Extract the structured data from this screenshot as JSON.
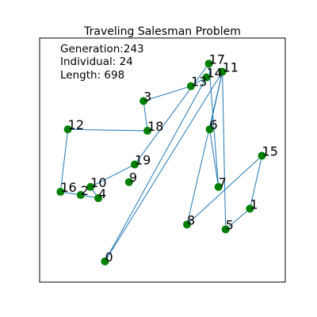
{
  "chart_data": {
    "type": "scatter",
    "title": "Traveling Salesman Problem",
    "xlim": [
      0,
      1
    ],
    "ylim": [
      0,
      1
    ],
    "grid": false,
    "annotations": {
      "generation": "Generation:243",
      "individual": "Individual: 24",
      "length": "Length:  698"
    },
    "colors": {
      "point": "#008000",
      "edge": "#1f77b4"
    },
    "cities": [
      {
        "id": "0",
        "x": 0.266,
        "y": 0.085
      },
      {
        "id": "1",
        "x": 0.856,
        "y": 0.301
      },
      {
        "id": "2",
        "x": 0.167,
        "y": 0.357
      },
      {
        "id": "3",
        "x": 0.423,
        "y": 0.742
      },
      {
        "id": "4",
        "x": 0.239,
        "y": 0.344
      },
      {
        "id": "5",
        "x": 0.757,
        "y": 0.216
      },
      {
        "id": "6",
        "x": 0.692,
        "y": 0.626
      },
      {
        "id": "7",
        "x": 0.728,
        "y": 0.39
      },
      {
        "id": "8",
        "x": 0.6,
        "y": 0.236
      },
      {
        "id": "9",
        "x": 0.364,
        "y": 0.41
      },
      {
        "id": "10",
        "x": 0.207,
        "y": 0.39
      },
      {
        "id": "11",
        "x": 0.744,
        "y": 0.862
      },
      {
        "id": "12",
        "x": 0.115,
        "y": 0.626
      },
      {
        "id": "13",
        "x": 0.616,
        "y": 0.803
      },
      {
        "id": "14",
        "x": 0.679,
        "y": 0.839
      },
      {
        "id": "15",
        "x": 0.905,
        "y": 0.518
      },
      {
        "id": "16",
        "x": 0.085,
        "y": 0.37
      },
      {
        "id": "17",
        "x": 0.689,
        "y": 0.895
      },
      {
        "id": "18",
        "x": 0.439,
        "y": 0.62
      },
      {
        "id": "19",
        "x": 0.387,
        "y": 0.482
      }
    ],
    "route": [
      "0",
      "14",
      "13",
      "3",
      "18",
      "12",
      "16",
      "2",
      "4",
      "10",
      "19",
      "17",
      "7",
      "6",
      "11",
      "8",
      "15",
      "1",
      "5",
      "11",
      "0"
    ]
  }
}
